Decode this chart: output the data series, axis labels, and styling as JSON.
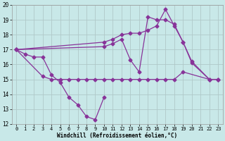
{
  "xlabel": "Windchill (Refroidissement éolien,°C)",
  "xlim": [
    -0.5,
    23.5
  ],
  "ylim": [
    12,
    20
  ],
  "xticks": [
    0,
    1,
    2,
    3,
    4,
    5,
    6,
    7,
    8,
    9,
    10,
    11,
    12,
    13,
    14,
    15,
    16,
    17,
    18,
    19,
    20,
    21,
    22,
    23
  ],
  "yticks": [
    12,
    13,
    14,
    15,
    16,
    17,
    18,
    19,
    20
  ],
  "background_color": "#c8e8e8",
  "grid_color": "#b0c8c8",
  "line_color": "#883399",
  "curves": [
    {
      "x": [
        0,
        1,
        2,
        3,
        4,
        5,
        6,
        7,
        8,
        9,
        10
      ],
      "y": [
        17.0,
        16.7,
        16.5,
        16.5,
        15.3,
        14.8,
        13.8,
        13.3,
        12.5,
        12.3,
        13.8
      ]
    },
    {
      "x": [
        0,
        3,
        4,
        5,
        6,
        7,
        8,
        9,
        10,
        11,
        12,
        13,
        14,
        15,
        16,
        17,
        18,
        19,
        22,
        23
      ],
      "y": [
        17.0,
        15.2,
        15.0,
        15.0,
        15.0,
        15.0,
        15.0,
        15.0,
        15.0,
        15.0,
        15.0,
        15.0,
        15.0,
        15.0,
        15.0,
        15.0,
        15.0,
        15.5,
        15.0,
        15.0
      ]
    },
    {
      "x": [
        0,
        10,
        11,
        12,
        13,
        14,
        15,
        16,
        17,
        18,
        19,
        20,
        22,
        23
      ],
      "y": [
        17.0,
        17.2,
        17.4,
        17.7,
        16.3,
        15.5,
        19.2,
        19.0,
        19.0,
        18.7,
        17.5,
        16.1,
        15.0,
        15.0
      ]
    },
    {
      "x": [
        0,
        10,
        11,
        12,
        13,
        14,
        15,
        16,
        17,
        18,
        19,
        20,
        22,
        23
      ],
      "y": [
        17.0,
        17.5,
        17.7,
        18.0,
        18.1,
        18.1,
        18.3,
        18.6,
        19.7,
        18.6,
        17.5,
        16.2,
        15.0,
        15.0
      ]
    }
  ]
}
